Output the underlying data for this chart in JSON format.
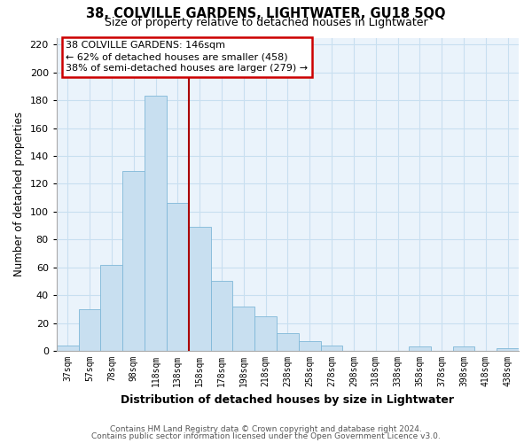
{
  "title": "38, COLVILLE GARDENS, LIGHTWATER, GU18 5QQ",
  "subtitle": "Size of property relative to detached houses in Lightwater",
  "xlabel": "Distribution of detached houses by size in Lightwater",
  "ylabel": "Number of detached properties",
  "bin_labels": [
    "37sqm",
    "57sqm",
    "78sqm",
    "98sqm",
    "118sqm",
    "138sqm",
    "158sqm",
    "178sqm",
    "198sqm",
    "218sqm",
    "238sqm",
    "258sqm",
    "278sqm",
    "298sqm",
    "318sqm",
    "338sqm",
    "358sqm",
    "378sqm",
    "398sqm",
    "418sqm",
    "438sqm"
  ],
  "bar_values": [
    4,
    30,
    62,
    129,
    183,
    106,
    89,
    50,
    32,
    25,
    13,
    7,
    4,
    0,
    0,
    0,
    3,
    0,
    3,
    0,
    2
  ],
  "bar_color": "#c8dff0",
  "bar_edge_color": "#7fb8d8",
  "vline_x": 5.5,
  "vline_color": "#aa0000",
  "annotation_title": "38 COLVILLE GARDENS: 146sqm",
  "annotation_line1": "← 62% of detached houses are smaller (458)",
  "annotation_line2": "38% of semi-detached houses are larger (279) →",
  "annotation_box_color": "#ffffff",
  "annotation_box_edge": "#cc0000",
  "ylim": [
    0,
    225
  ],
  "yticks": [
    0,
    20,
    40,
    60,
    80,
    100,
    120,
    140,
    160,
    180,
    200,
    220
  ],
  "footer1": "Contains HM Land Registry data © Crown copyright and database right 2024.",
  "footer2": "Contains public sector information licensed under the Open Government Licence v3.0.",
  "background_color": "#ffffff",
  "plot_bg_color": "#eaf3fb",
  "grid_color": "#c8dff0"
}
